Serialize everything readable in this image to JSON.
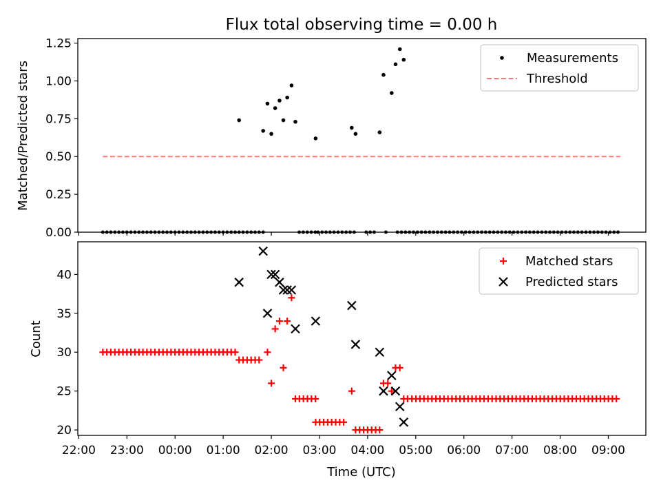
{
  "figure": {
    "title": "Flux total observing time = 0.00 h",
    "xlabel": "Time (UTC)",
    "xticks": [
      "22:00",
      "23:00",
      "00:00",
      "01:00",
      "02:00",
      "03:00",
      "04:00",
      "05:00",
      "06:00",
      "07:00",
      "08:00",
      "09:00"
    ]
  },
  "colors": {
    "measurement": "#000000",
    "threshold": "#ff7777",
    "matched": "#ff0000",
    "predicted": "#000000"
  },
  "chart_data": [
    {
      "type": "scatter",
      "ylabel": "Matched/Predicted stars",
      "ylim": [
        0,
        1.28
      ],
      "xlim": [
        -0.02,
        11.78
      ],
      "yticks": [
        "0.00",
        "0.25",
        "0.50",
        "0.75",
        "1.00",
        "1.25"
      ],
      "legend": {
        "placement": "top-right",
        "entries": [
          "Measurements",
          "Threshold"
        ]
      },
      "threshold": {
        "name": "Threshold",
        "y": 0.5,
        "x_range": [
          0.5,
          11.25
        ]
      },
      "ratio_zero_ranges": [
        [
          0.5,
          3.27
        ],
        [
          3.33,
          3.88
        ],
        [
          4.58,
          4.93
        ],
        [
          4.97,
          5.72
        ],
        [
          5.97,
          6.2
        ],
        [
          6.62,
          11.25
        ]
      ],
      "ratio_zero_step": 0.0833,
      "ratio_extra_zero": [
        6.38
      ],
      "ratio_points": [
        [
          3.33,
          0.74
        ],
        [
          3.83,
          0.67
        ],
        [
          3.92,
          0.85
        ],
        [
          4.0,
          0.65
        ],
        [
          4.08,
          0.82
        ],
        [
          4.17,
          0.87
        ],
        [
          4.25,
          0.74
        ],
        [
          4.33,
          0.89
        ],
        [
          4.42,
          0.97
        ],
        [
          4.5,
          0.73
        ],
        [
          4.92,
          0.62
        ],
        [
          5.67,
          0.69
        ],
        [
          5.75,
          0.65
        ],
        [
          6.25,
          0.66
        ],
        [
          6.33,
          1.04
        ],
        [
          6.5,
          0.92
        ],
        [
          6.58,
          1.11
        ],
        [
          6.67,
          1.21
        ],
        [
          6.75,
          1.14
        ]
      ]
    },
    {
      "type": "scatter",
      "ylabel": "Count",
      "ylim": [
        19.3,
        44.2
      ],
      "xlim": [
        -0.02,
        11.78
      ],
      "yticks": [
        "20",
        "25",
        "30",
        "35",
        "40"
      ],
      "legend": {
        "placement": "top-right",
        "entries": [
          "Matched stars",
          "Predicted stars"
        ]
      },
      "matched_runs": [
        {
          "x_range": [
            0.5,
            3.27
          ],
          "y": 30
        },
        {
          "x_range": [
            3.33,
            3.82
          ],
          "y": 29
        },
        {
          "x_range": [
            4.5,
            4.92
          ],
          "y": 24
        },
        {
          "x_range": [
            4.92,
            5.58
          ],
          "y": 21
        },
        {
          "x_range": [
            5.75,
            6.25
          ],
          "y": 20
        },
        {
          "x_range": [
            6.92,
            11.25
          ],
          "y": 24
        }
      ],
      "matched_step": 0.0833,
      "matched_points": [
        [
          3.92,
          30
        ],
        [
          4.0,
          26
        ],
        [
          4.08,
          33
        ],
        [
          4.17,
          34
        ],
        [
          4.25,
          28
        ],
        [
          4.33,
          34
        ],
        [
          4.42,
          37
        ],
        [
          5.67,
          25
        ],
        [
          6.33,
          26
        ],
        [
          6.42,
          26
        ],
        [
          6.5,
          25
        ],
        [
          6.58,
          28
        ],
        [
          6.67,
          28
        ],
        [
          6.75,
          24
        ],
        [
          6.83,
          24
        ]
      ],
      "predicted_points": [
        [
          3.33,
          39
        ],
        [
          3.83,
          43
        ],
        [
          3.92,
          35
        ],
        [
          4.0,
          40
        ],
        [
          4.08,
          40
        ],
        [
          4.17,
          39
        ],
        [
          4.25,
          38
        ],
        [
          4.33,
          38
        ],
        [
          4.42,
          38
        ],
        [
          4.5,
          33
        ],
        [
          4.92,
          34
        ],
        [
          5.67,
          36
        ],
        [
          5.75,
          31
        ],
        [
          6.25,
          30
        ],
        [
          6.33,
          25
        ],
        [
          6.5,
          27
        ],
        [
          6.58,
          25
        ],
        [
          6.67,
          23
        ],
        [
          6.75,
          21
        ]
      ]
    }
  ]
}
